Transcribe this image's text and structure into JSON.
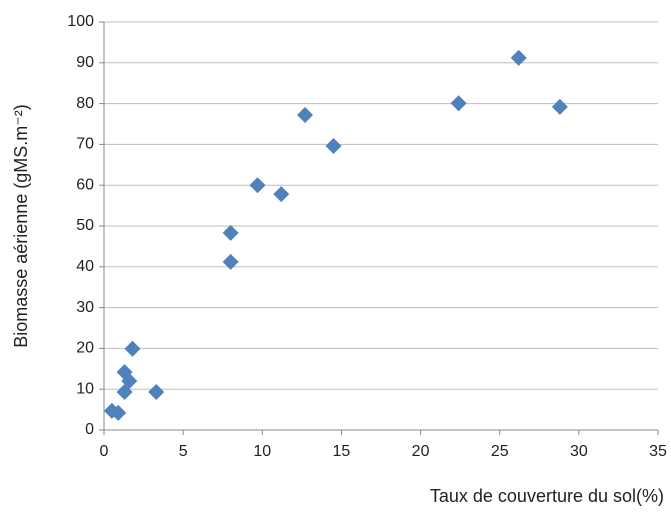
{
  "chart_data": {
    "type": "scatter",
    "x_label": "Taux de couverture du sol(%)",
    "y_label": "Biomasse aérienne (gMS.m⁻²)",
    "x": [
      0.5,
      0.9,
      1.3,
      1.3,
      1.6,
      1.8,
      3.3,
      8.0,
      8.0,
      9.7,
      11.2,
      12.7,
      14.5,
      22.4,
      26.2,
      28.8
    ],
    "series": [
      {
        "color": "#4f81bd",
        "values": [
          4.7,
          4.2,
          9.3,
          14.2,
          12.0,
          19.9,
          9.3,
          48.3,
          41.2,
          60.0,
          57.8,
          77.2,
          69.6,
          80.1,
          91.2,
          79.2
        ]
      }
    ],
    "xlim": [
      0,
      35
    ],
    "xticks": [
      0,
      5,
      10,
      15,
      20,
      25,
      30,
      35
    ],
    "ylim": [
      0,
      100
    ],
    "yticks": [
      0,
      10,
      20,
      30,
      40,
      50,
      60,
      70,
      80,
      90,
      100
    ],
    "grid": true
  }
}
